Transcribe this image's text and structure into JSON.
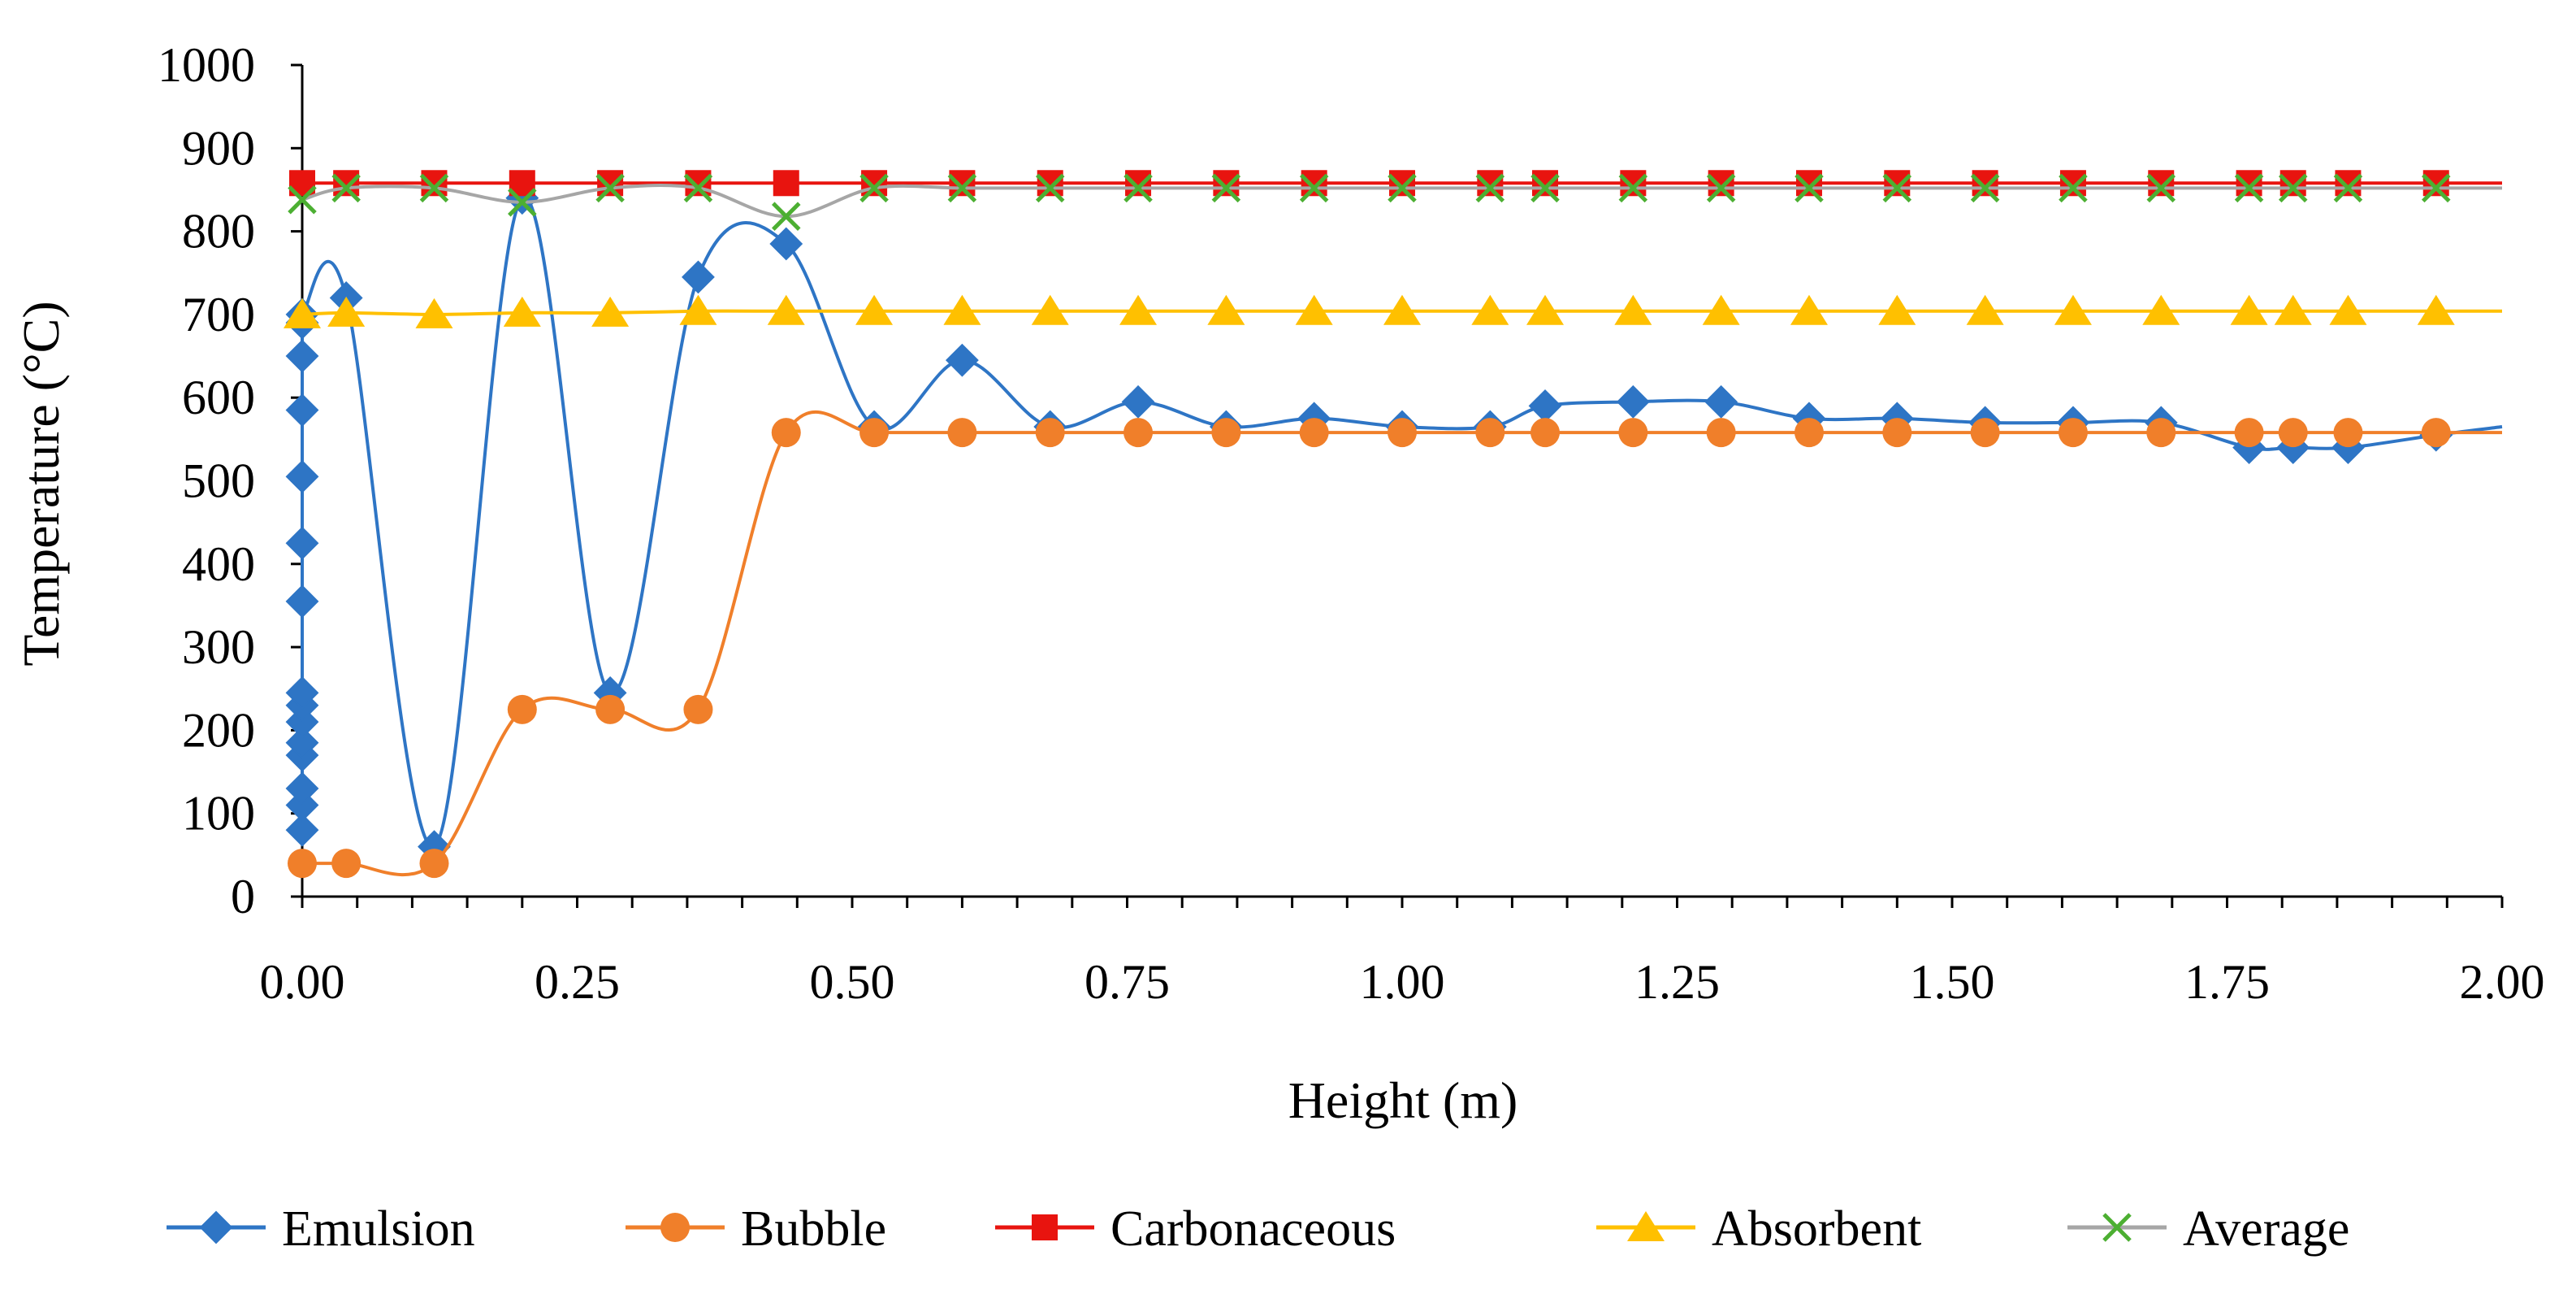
{
  "chart_data": {
    "type": "line",
    "title": "",
    "xlabel": "Height (m)",
    "ylabel": "Temperature (°C)",
    "xlim": [
      0,
      2
    ],
    "ylim": [
      0,
      1000
    ],
    "x_ticks": [
      "0.00",
      "0.25",
      "0.50",
      "0.75",
      "1.00",
      "1.25",
      "1.50",
      "1.75",
      "2.00"
    ],
    "y_ticks": [
      "0",
      "100",
      "200",
      "300",
      "400",
      "500",
      "600",
      "700",
      "800",
      "900",
      "1000"
    ],
    "legend_position": "bottom",
    "series": [
      {
        "name": "Emulsion",
        "color": "#2E75C5",
        "marker": "diamond",
        "x": [
          0.0,
          0.0,
          0.0,
          0.0,
          0.0,
          0.0,
          0.0,
          0.0,
          0.0,
          0.0,
          0.0,
          0.0,
          0.0,
          0.0,
          0.0,
          0.04,
          0.12,
          0.2,
          0.28,
          0.36,
          0.44,
          0.52,
          0.6,
          0.68,
          0.76,
          0.84,
          0.92,
          1.0,
          1.08,
          1.13,
          1.21,
          1.29,
          1.37,
          1.45,
          1.53,
          1.61,
          1.69,
          1.77,
          1.81,
          1.86,
          1.94,
          2.0
        ],
        "y": [
          80,
          110,
          130,
          170,
          185,
          210,
          230,
          245,
          355,
          425,
          505,
          585,
          650,
          690,
          700,
          720,
          60,
          840,
          245,
          745,
          785,
          565,
          645,
          565,
          595,
          565,
          575,
          565,
          565,
          590,
          595,
          595,
          575,
          575,
          570,
          570,
          570,
          540,
          540,
          540,
          555,
          565
        ]
      },
      {
        "name": "Bubble",
        "color": "#F07F2A",
        "marker": "circle",
        "x": [
          0.0,
          0.04,
          0.12,
          0.2,
          0.28,
          0.36,
          0.44,
          0.52,
          0.6,
          0.68,
          0.76,
          0.84,
          0.92,
          1.0,
          1.08,
          1.13,
          1.21,
          1.29,
          1.37,
          1.45,
          1.53,
          1.61,
          1.69,
          1.77,
          1.81,
          1.86,
          1.94,
          2.0
        ],
        "y": [
          40,
          40,
          40,
          225,
          225,
          225,
          558,
          558,
          558,
          558,
          558,
          558,
          558,
          558,
          558,
          558,
          558,
          558,
          558,
          558,
          558,
          558,
          558,
          558,
          558,
          558,
          558,
          558
        ]
      },
      {
        "name": "Carbonaceous",
        "color": "#E8140F",
        "marker": "square",
        "x": [
          0.0,
          0.04,
          0.12,
          0.2,
          0.28,
          0.36,
          0.44,
          0.52,
          0.6,
          0.68,
          0.76,
          0.84,
          0.92,
          1.0,
          1.08,
          1.13,
          1.21,
          1.29,
          1.37,
          1.45,
          1.53,
          1.61,
          1.69,
          1.77,
          1.81,
          1.86,
          1.94,
          2.0
        ],
        "y": [
          858,
          858,
          858,
          858,
          858,
          858,
          858,
          858,
          858,
          858,
          858,
          858,
          858,
          858,
          858,
          858,
          858,
          858,
          858,
          858,
          858,
          858,
          858,
          858,
          858,
          858,
          858,
          858
        ]
      },
      {
        "name": "Absorbent",
        "color": "#FFC000",
        "marker": "triangle",
        "x": [
          0.0,
          0.04,
          0.12,
          0.2,
          0.28,
          0.36,
          0.44,
          0.52,
          0.6,
          0.68,
          0.76,
          0.84,
          0.92,
          1.0,
          1.08,
          1.13,
          1.21,
          1.29,
          1.37,
          1.45,
          1.53,
          1.61,
          1.69,
          1.77,
          1.81,
          1.86,
          1.94,
          2.0
        ],
        "y": [
          700,
          702,
          700,
          702,
          702,
          704,
          704,
          704,
          704,
          704,
          704,
          704,
          704,
          704,
          704,
          704,
          704,
          704,
          704,
          704,
          704,
          704,
          704,
          704,
          704,
          704,
          704,
          704
        ]
      },
      {
        "name": "Average",
        "color": "#A6A6A6",
        "marker_color": "#4CAF32",
        "marker": "x",
        "x": [
          0.0,
          0.04,
          0.12,
          0.2,
          0.28,
          0.36,
          0.44,
          0.52,
          0.6,
          0.68,
          0.76,
          0.84,
          0.92,
          1.0,
          1.08,
          1.13,
          1.21,
          1.29,
          1.37,
          1.45,
          1.53,
          1.61,
          1.69,
          1.77,
          1.81,
          1.86,
          1.94,
          2.0
        ],
        "y": [
          838,
          852,
          852,
          835,
          852,
          852,
          818,
          852,
          852,
          852,
          852,
          852,
          852,
          852,
          852,
          852,
          852,
          852,
          852,
          852,
          852,
          852,
          852,
          852,
          852,
          852,
          852,
          852
        ]
      }
    ]
  }
}
